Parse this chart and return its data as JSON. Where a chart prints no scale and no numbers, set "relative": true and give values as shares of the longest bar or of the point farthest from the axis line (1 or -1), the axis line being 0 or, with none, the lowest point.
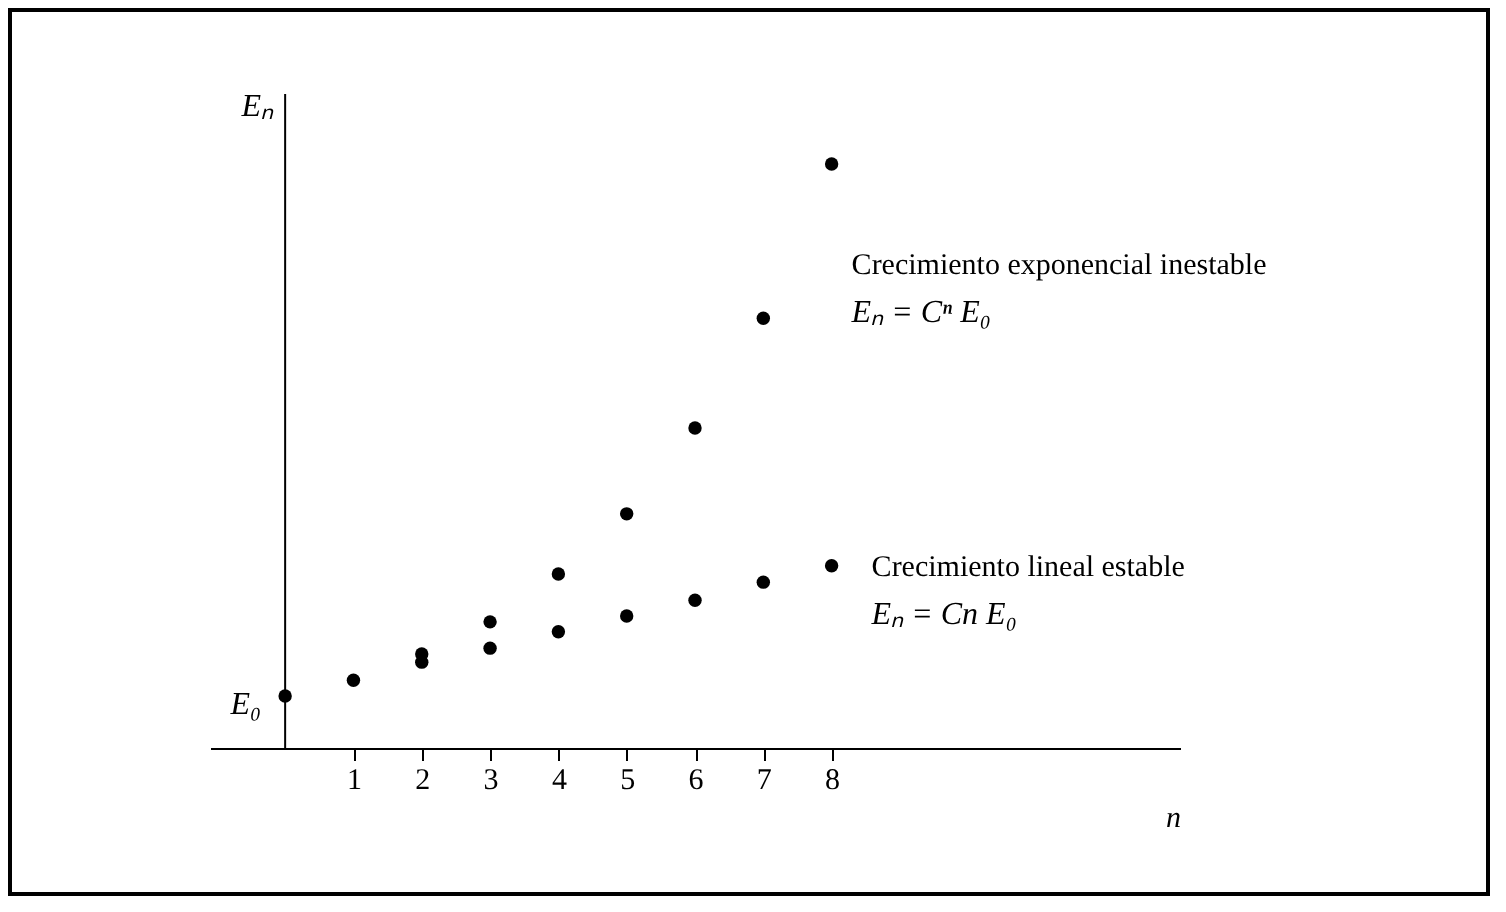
{
  "chart_data": {
    "type": "scatter",
    "relative": true,
    "xlabel": "n",
    "ylabel": "Eₙ",
    "xlim": [
      -1.1,
      13.1
    ],
    "xticks": [
      1,
      2,
      3,
      4,
      5,
      6,
      7,
      8
    ],
    "grid": false,
    "marker": "circle",
    "series": [
      {
        "name": "Crecimiento exponencial inestable",
        "color": "#000000",
        "x": [
          2,
          3,
          4,
          5,
          6,
          7,
          8
        ],
        "values": [
          0.161,
          0.216,
          0.298,
          0.401,
          0.548,
          0.736,
          1
        ]
      },
      {
        "name": "Crecimiento lineal estable",
        "color": "#000000",
        "x": [
          0,
          1,
          2,
          3,
          4,
          5,
          6,
          7,
          8
        ],
        "values": [
          0.089,
          0.116,
          0.147,
          0.171,
          0.199,
          0.226,
          0.253,
          0.284,
          0.312
        ]
      }
    ],
    "annotations": [
      {
        "text": "E₀",
        "x": 0,
        "y": 0.089
      },
      "Eₙ = Cⁿ E₀",
      "Eₙ = Cn E₀"
    ]
  }
}
